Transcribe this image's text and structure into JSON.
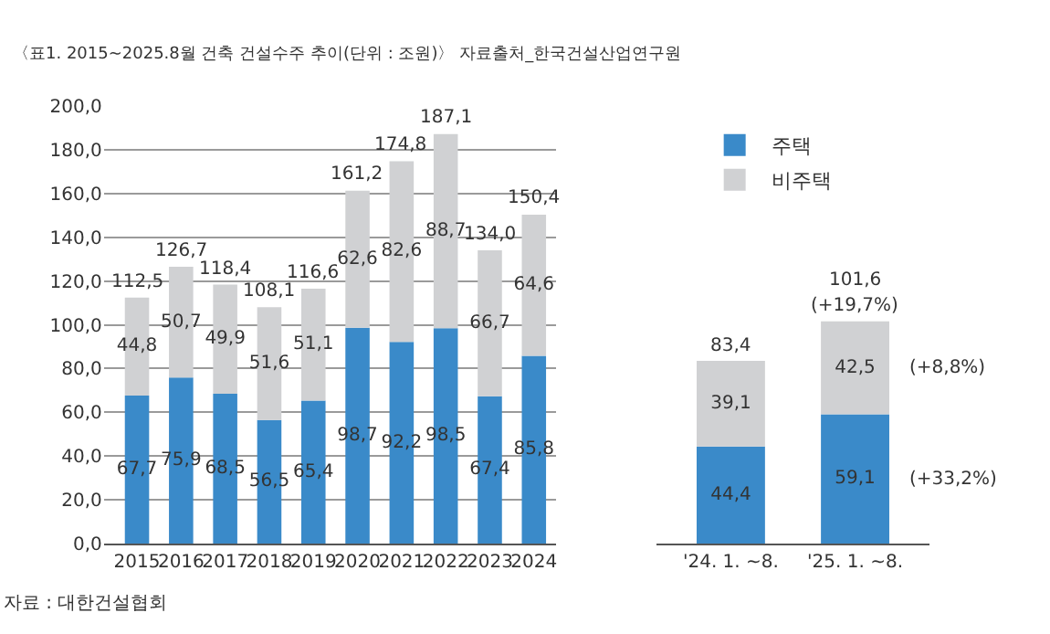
{
  "chart_data": [
    {
      "type": "bar",
      "title": "〈표1. 2015~2025.8월 건축 건설수주 추이(단위 : 조원)〉 자료출처_한국건설산업연구원",
      "annotations": [
        "자료 : 대한건설협회"
      ],
      "categories": [
        "2015",
        "2016",
        "2017",
        "2018",
        "2019",
        "2020",
        "2021",
        "2022",
        "2023",
        "2024"
      ],
      "stacked": true,
      "series": [
        {
          "color": "#3a8ac9",
          "values": [
            67.7,
            75.9,
            68.5,
            56.5,
            65.4,
            98.7,
            92.2,
            98.5,
            67.4,
            85.8
          ],
          "value_labels": [
            "67,7",
            "75,9",
            "68,5",
            "56,5",
            "65,4",
            "98,7",
            "92,2",
            "98,5",
            "67,4",
            "85,8"
          ]
        },
        {
          "color": "#d0d1d3",
          "values": [
            44.8,
            50.7,
            49.9,
            51.6,
            51.1,
            62.6,
            82.6,
            88.7,
            66.7,
            64.6
          ],
          "value_labels": [
            "44,8",
            "50,7",
            "49,9",
            "51,6",
            "51,1",
            "62,6",
            "82,6",
            "88,7",
            "66,7",
            "64,6"
          ]
        }
      ],
      "totals": [
        "112,5",
        "126,7",
        "118,4",
        "108,1",
        "116,6",
        "161,2",
        "174,8",
        "187,1",
        "134,0",
        "150,4"
      ],
      "ylim": [
        0,
        200
      ],
      "yticks": [
        {
          "value": 0,
          "label": "0,0"
        },
        {
          "value": 20,
          "label": "20,0"
        },
        {
          "value": 40,
          "label": "40,0"
        },
        {
          "value": 60,
          "label": "60,0"
        },
        {
          "value": 80,
          "label": "80,0"
        },
        {
          "value": 100,
          "label": "100,0"
        },
        {
          "value": 120,
          "label": "120,0"
        },
        {
          "value": 140,
          "label": "140,0"
        },
        {
          "value": 160,
          "label": "160,0"
        },
        {
          "value": 180,
          "label": "180,0"
        },
        {
          "value": 200,
          "label": "200,0"
        }
      ],
      "grid": "y",
      "legend": false
    },
    {
      "type": "bar",
      "categories": [
        "'24. 1. ~8.",
        "'25. 1. ~8."
      ],
      "stacked": true,
      "series": [
        {
          "name": "주택",
          "color": "#3a8ac9",
          "values": [
            44.4,
            59.1
          ],
          "value_labels": [
            "44,4",
            "59,1"
          ]
        },
        {
          "name": "비주택",
          "color": "#d0d1d3",
          "values": [
            39.1,
            42.5
          ],
          "value_labels": [
            "39,1",
            "42,5"
          ]
        }
      ],
      "totals": [
        "83,4",
        "101,6"
      ],
      "annotations": [
        "(+19,7%)",
        "(+8,8%)",
        "(+33,2%)"
      ],
      "ylim": [
        0,
        200
      ],
      "tick_labels": "x",
      "legend": "top"
    }
  ]
}
